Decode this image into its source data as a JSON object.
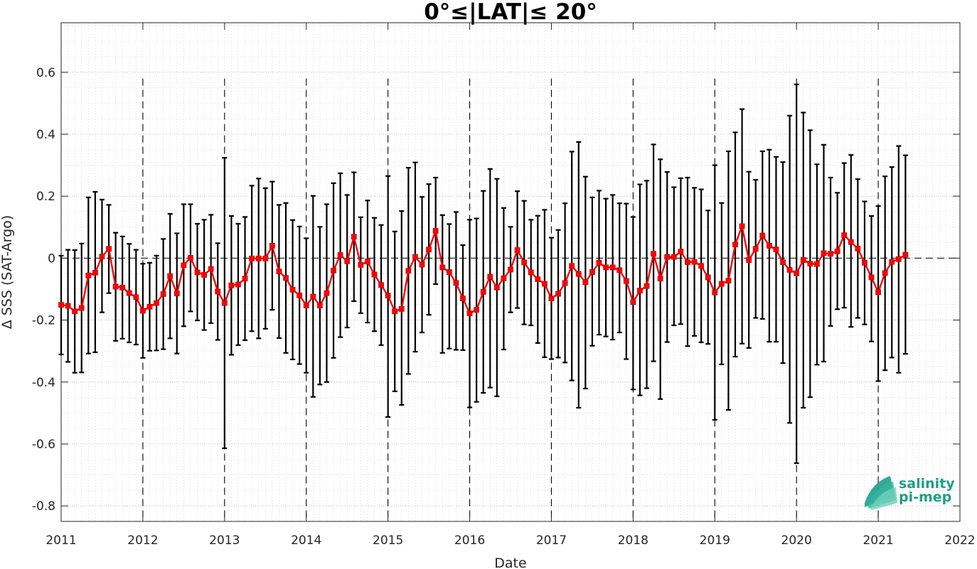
{
  "chart_data": {
    "type": "line",
    "title": "0°≤|LAT|≤ 20°",
    "xlabel": "Date",
    "ylabel": "Δ SSS (SAT-Argo)",
    "xlim": [
      2011,
      2022
    ],
    "ylim": [
      -0.85,
      0.76
    ],
    "x_ticks": [
      2011,
      2012,
      2013,
      2014,
      2015,
      2016,
      2017,
      2018,
      2019,
      2020,
      2021,
      2022
    ],
    "x_tick_labels": [
      "2011",
      "2012",
      "2013",
      "2014",
      "2015",
      "2016",
      "2017",
      "2018",
      "2019",
      "2020",
      "2021",
      "2022"
    ],
    "y_ticks": [
      0.6,
      0.4,
      0.2,
      0,
      -0.2,
      -0.4,
      -0.6,
      -0.8
    ],
    "y_tick_labels": [
      "0.6",
      "0.4",
      "0.2",
      "0",
      "-0.2",
      "-0.4",
      "-0.6",
      "-0.8"
    ],
    "grid": true,
    "zero_line": "dashed",
    "year_separators": "dashed vertical at each year boundary",
    "series_color": "#ff0000",
    "errorbar_color": "#000000",
    "x_start_date": "2011-01",
    "x_step": "monthly",
    "series": [
      {
        "mean": [
          -0.151,
          -0.154,
          -0.172,
          -0.161,
          -0.056,
          -0.047,
          0.005,
          0.03,
          -0.092,
          -0.095,
          -0.113,
          -0.126,
          -0.17,
          -0.157,
          -0.145,
          -0.116,
          -0.058,
          -0.114,
          -0.023,
          0.001,
          -0.046,
          -0.054,
          -0.035,
          -0.108,
          -0.145,
          -0.088,
          -0.085,
          -0.066,
          -0.001,
          -0.001,
          -0.001,
          0.04,
          -0.043,
          -0.064,
          -0.102,
          -0.12,
          -0.153,
          -0.124,
          -0.153,
          -0.113,
          -0.04,
          0.01,
          -0.01,
          0.069,
          -0.022,
          -0.011,
          -0.053,
          -0.087,
          -0.121,
          -0.172,
          -0.164,
          -0.041,
          0.004,
          -0.021,
          0.028,
          0.088,
          -0.03,
          -0.045,
          -0.08,
          -0.13,
          -0.178,
          -0.167,
          -0.109,
          -0.06,
          -0.095,
          -0.065,
          -0.037,
          0.026,
          -0.014,
          -0.046,
          -0.068,
          -0.083,
          -0.13,
          -0.115,
          -0.08,
          -0.025,
          -0.051,
          -0.078,
          -0.045,
          -0.015,
          -0.03,
          -0.03,
          -0.039,
          -0.074,
          -0.142,
          -0.105,
          -0.09,
          0.014,
          -0.066,
          0.004,
          0.004,
          0.021,
          -0.013,
          -0.012,
          -0.025,
          -0.062,
          -0.111,
          -0.083,
          -0.073,
          0.044,
          0.103,
          -0.006,
          0.03,
          0.073,
          0.04,
          0.028,
          -0.013,
          -0.038,
          -0.049,
          -0.006,
          -0.018,
          -0.019,
          0.016,
          0.014,
          0.022,
          0.074,
          0.052,
          0.031,
          -0.015,
          -0.062,
          -0.11,
          -0.048,
          -0.012,
          -0.003,
          0.011
        ],
        "upper": [
          0.008,
          0.027,
          0.026,
          0.047,
          0.196,
          0.214,
          0.189,
          0.172,
          0.082,
          0.07,
          0.046,
          0.027,
          -0.018,
          -0.015,
          0.008,
          0.062,
          0.143,
          0.08,
          0.174,
          0.174,
          0.111,
          0.124,
          0.14,
          0.048,
          0.324,
          0.136,
          0.111,
          0.133,
          0.234,
          0.257,
          0.226,
          0.247,
          0.172,
          0.178,
          0.123,
          0.102,
          0.064,
          0.201,
          0.101,
          0.174,
          0.242,
          0.274,
          0.204,
          0.277,
          0.132,
          0.186,
          0.13,
          0.107,
          0.265,
          0.086,
          0.152,
          0.292,
          0.309,
          0.198,
          0.239,
          0.26,
          0.139,
          0.11,
          0.149,
          0.042,
          0.124,
          0.128,
          0.217,
          0.288,
          0.256,
          0.162,
          0.101,
          0.216,
          0.185,
          0.124,
          0.137,
          0.156,
          0.066,
          0.091,
          0.177,
          0.344,
          0.375,
          0.263,
          0.196,
          0.218,
          0.192,
          0.204,
          0.177,
          0.176,
          0.133,
          0.238,
          0.25,
          0.367,
          0.319,
          0.278,
          0.229,
          0.258,
          0.26,
          0.227,
          0.222,
          0.154,
          0.3,
          0.178,
          0.345,
          0.406,
          0.481,
          0.279,
          0.253,
          0.345,
          0.35,
          0.327,
          0.31,
          0.46,
          0.561,
          0.47,
          0.413,
          0.303,
          0.366,
          0.26,
          0.211,
          0.307,
          0.333,
          0.255,
          0.183,
          0.136,
          0.168,
          0.264,
          0.294,
          0.362,
          0.332
        ],
        "lower": [
          -0.311,
          -0.335,
          -0.37,
          -0.369,
          -0.308,
          -0.304,
          -0.175,
          -0.113,
          -0.267,
          -0.26,
          -0.272,
          -0.279,
          -0.322,
          -0.299,
          -0.298,
          -0.294,
          -0.259,
          -0.308,
          -0.22,
          -0.172,
          -0.201,
          -0.232,
          -0.21,
          -0.264,
          -0.614,
          -0.312,
          -0.281,
          -0.265,
          -0.236,
          -0.259,
          -0.228,
          -0.167,
          -0.258,
          -0.306,
          -0.327,
          -0.342,
          -0.37,
          -0.448,
          -0.408,
          -0.4,
          -0.322,
          -0.255,
          -0.224,
          -0.139,
          -0.178,
          -0.208,
          -0.236,
          -0.281,
          -0.513,
          -0.43,
          -0.474,
          -0.374,
          -0.302,
          -0.24,
          -0.183,
          -0.084,
          -0.306,
          -0.292,
          -0.296,
          -0.297,
          -0.482,
          -0.464,
          -0.435,
          -0.418,
          -0.446,
          -0.295,
          -0.175,
          -0.161,
          -0.214,
          -0.217,
          -0.274,
          -0.32,
          -0.326,
          -0.321,
          -0.337,
          -0.395,
          -0.483,
          -0.421,
          -0.283,
          -0.247,
          -0.253,
          -0.263,
          -0.24,
          -0.326,
          -0.424,
          -0.443,
          -0.42,
          -0.333,
          -0.455,
          -0.271,
          -0.217,
          -0.213,
          -0.284,
          -0.251,
          -0.272,
          -0.277,
          -0.522,
          -0.343,
          -0.49,
          -0.318,
          -0.276,
          -0.29,
          -0.193,
          -0.196,
          -0.27,
          -0.27,
          -0.339,
          -0.532,
          -0.662,
          -0.483,
          -0.449,
          -0.344,
          -0.334,
          -0.219,
          -0.165,
          -0.16,
          -0.222,
          -0.193,
          -0.214,
          -0.269,
          -0.397,
          -0.362,
          -0.321,
          -0.37,
          -0.309
        ]
      }
    ]
  },
  "logo": {
    "line1": "salinity",
    "line2": "pi-mep",
    "color": "#1f9e8a"
  }
}
